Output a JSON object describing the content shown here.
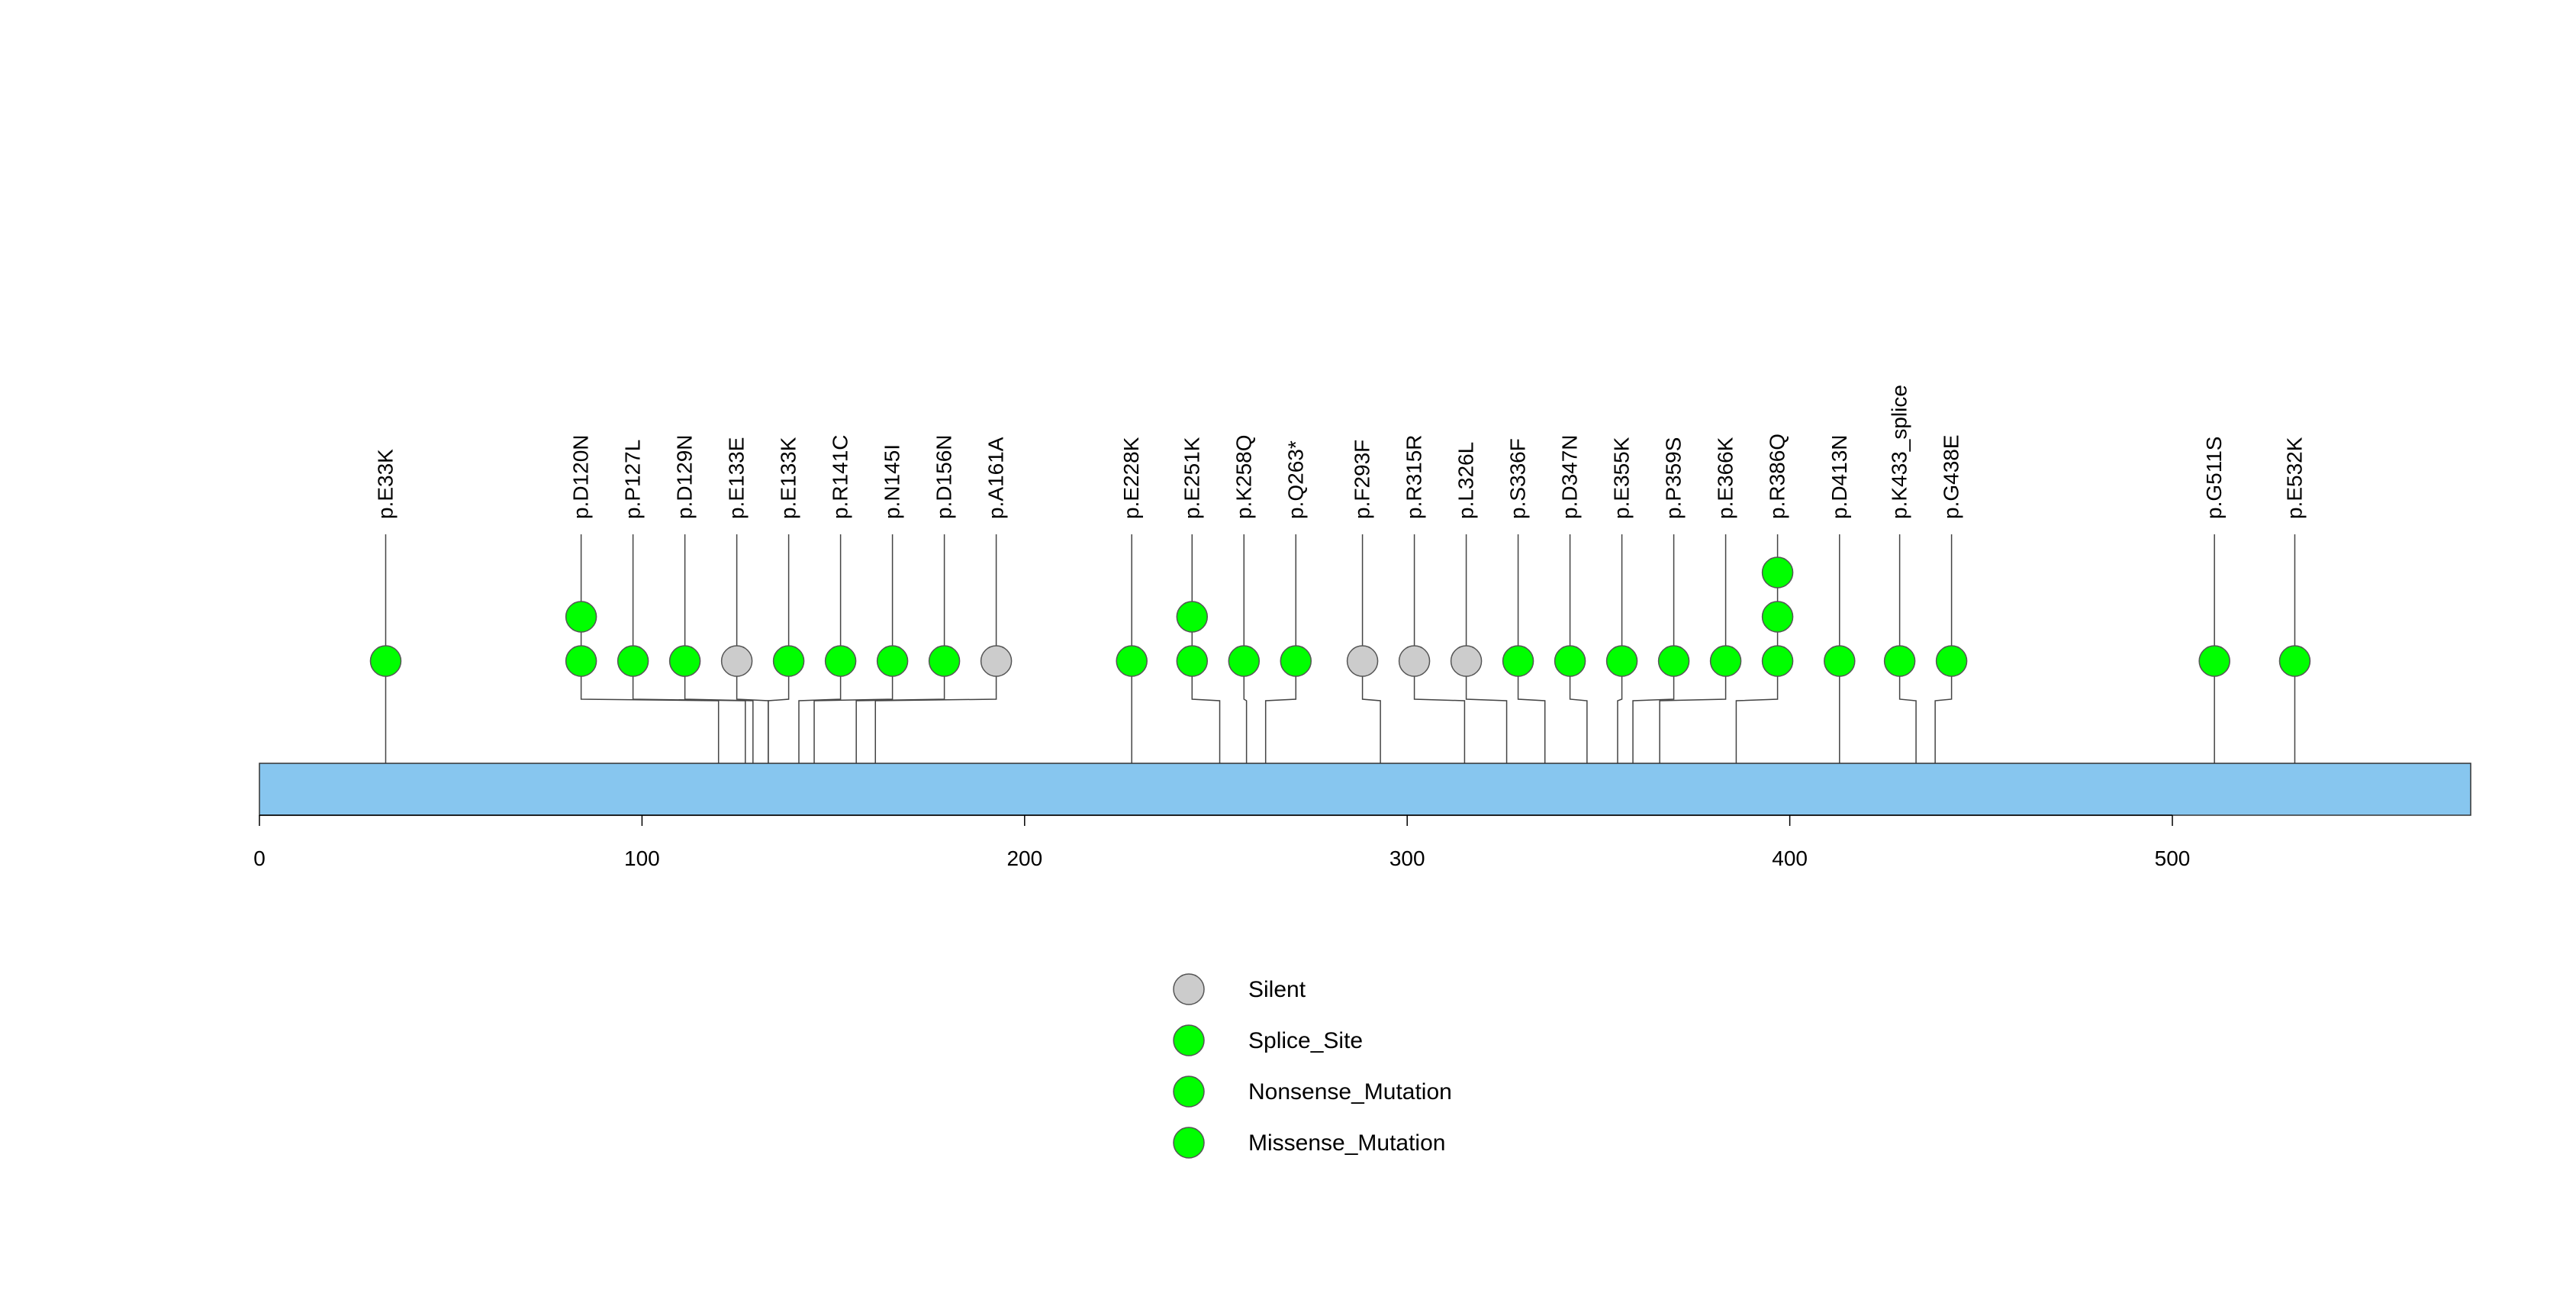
{
  "chart_data": {
    "type": "lollipop",
    "title": "",
    "xlabel": "",
    "ylabel": "",
    "xlim": [
      0,
      576
    ],
    "x_ticks": [
      0,
      100,
      200,
      300,
      400,
      500
    ],
    "x_tick_labels": [
      "0",
      "100",
      "200",
      "300",
      "400",
      "500"
    ],
    "colors": {
      "protein_bar": "#87c6ef",
      "missense": "#00ff00",
      "silent": "#cccccc"
    },
    "mutations": [
      {
        "label": "p.E33K",
        "position": 33,
        "count": 1,
        "type": "Missense_Mutation"
      },
      {
        "label": "p.D120N",
        "position": 120,
        "count": 2,
        "type": "Missense_Mutation"
      },
      {
        "label": "p.P127L",
        "position": 127,
        "count": 1,
        "type": "Missense_Mutation"
      },
      {
        "label": "p.D129N",
        "position": 129,
        "count": 1,
        "type": "Missense_Mutation"
      },
      {
        "label": "p.E133E",
        "position": 133,
        "count": 1,
        "type": "Silent"
      },
      {
        "label": "p.E133K",
        "position": 133,
        "count": 1,
        "type": "Missense_Mutation"
      },
      {
        "label": "p.R141C",
        "position": 141,
        "count": 1,
        "type": "Missense_Mutation"
      },
      {
        "label": "p.N145I",
        "position": 145,
        "count": 1,
        "type": "Missense_Mutation"
      },
      {
        "label": "p.D156N",
        "position": 156,
        "count": 1,
        "type": "Missense_Mutation"
      },
      {
        "label": "p.A161A",
        "position": 161,
        "count": 1,
        "type": "Silent"
      },
      {
        "label": "p.E228K",
        "position": 228,
        "count": 1,
        "type": "Missense_Mutation"
      },
      {
        "label": "p.E251K",
        "position": 251,
        "count": 2,
        "type": "Missense_Mutation"
      },
      {
        "label": "p.K258Q",
        "position": 258,
        "count": 1,
        "type": "Missense_Mutation"
      },
      {
        "label": "p.Q263*",
        "position": 263,
        "count": 1,
        "type": "Nonsense_Mutation"
      },
      {
        "label": "p.F293F",
        "position": 293,
        "count": 1,
        "type": "Silent"
      },
      {
        "label": "p.R315R",
        "position": 315,
        "count": 1,
        "type": "Silent"
      },
      {
        "label": "p.L326L",
        "position": 326,
        "count": 1,
        "type": "Silent"
      },
      {
        "label": "p.S336F",
        "position": 336,
        "count": 1,
        "type": "Missense_Mutation"
      },
      {
        "label": "p.D347N",
        "position": 347,
        "count": 1,
        "type": "Missense_Mutation"
      },
      {
        "label": "p.E355K",
        "position": 355,
        "count": 1,
        "type": "Missense_Mutation"
      },
      {
        "label": "p.P359S",
        "position": 359,
        "count": 1,
        "type": "Missense_Mutation"
      },
      {
        "label": "p.E366K",
        "position": 366,
        "count": 1,
        "type": "Missense_Mutation"
      },
      {
        "label": "p.R386Q",
        "position": 386,
        "count": 3,
        "type": "Missense_Mutation"
      },
      {
        "label": "p.D413N",
        "position": 413,
        "count": 1,
        "type": "Missense_Mutation"
      },
      {
        "label": "p.K433_splice",
        "position": 433,
        "count": 1,
        "type": "Splice_Site"
      },
      {
        "label": "p.G438E",
        "position": 438,
        "count": 1,
        "type": "Missense_Mutation"
      },
      {
        "label": "p.G511S",
        "position": 511,
        "count": 1,
        "type": "Missense_Mutation"
      },
      {
        "label": "p.E532K",
        "position": 532,
        "count": 1,
        "type": "Missense_Mutation"
      }
    ],
    "legend": {
      "placement": "bottom-center",
      "entries": [
        {
          "label": "Silent",
          "color": "#cccccc"
        },
        {
          "label": "Splice_Site",
          "color": "#00ff00"
        },
        {
          "label": "Nonsense_Mutation",
          "color": "#00ff00"
        },
        {
          "label": "Missense_Mutation",
          "color": "#00ff00"
        }
      ]
    }
  }
}
